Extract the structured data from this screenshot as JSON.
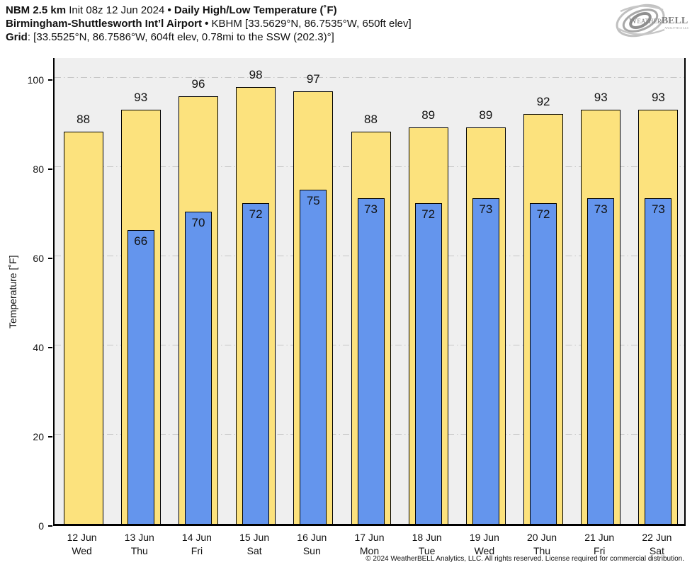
{
  "header": {
    "line1": {
      "model": "NBM 2.5 km",
      "init": " Init 08z 12 Jun 2024 ",
      "bullet": "• ",
      "product": "Daily High/Low Temperature (˚F)"
    },
    "line2": {
      "station": "Birmingham-Shuttlesworth Int’l Airport",
      "bullet": " • ",
      "details": "KBHM [33.5629°N, 86.7535°W, 650ft elev]"
    },
    "line3": {
      "label": "Grid",
      "details": ": [33.5525°N, 86.7586°W, 604ft elev, 0.78mi to the SSW (202.3)°]"
    }
  },
  "logo": {
    "word1": "Weather",
    "word2": "BELL",
    "subtitle": "Analytics LLC"
  },
  "footer": {
    "copyright": "© 2024 WeatherBELL Analytics, LLC. All rights reserved. License required for commercial distribution."
  },
  "chart_data": {
    "type": "bar",
    "title": "Daily High/Low Temperature (°F)",
    "ylabel": "Temperature [˚F]",
    "ylim": [
      0,
      105
    ],
    "yticks": [
      0,
      20,
      40,
      60,
      80,
      100
    ],
    "grid": "horizontal dash-dot",
    "legend_position": "none",
    "categories": [
      {
        "date": "12 Jun",
        "day": "Wed"
      },
      {
        "date": "13 Jun",
        "day": "Thu"
      },
      {
        "date": "14 Jun",
        "day": "Fri"
      },
      {
        "date": "15 Jun",
        "day": "Sat"
      },
      {
        "date": "16 Jun",
        "day": "Sun"
      },
      {
        "date": "17 Jun",
        "day": "Mon"
      },
      {
        "date": "18 Jun",
        "day": "Tue"
      },
      {
        "date": "19 Jun",
        "day": "Wed"
      },
      {
        "date": "20 Jun",
        "day": "Thu"
      },
      {
        "date": "21 Jun",
        "day": "Fri"
      },
      {
        "date": "22 Jun",
        "day": "Sat"
      }
    ],
    "series": [
      {
        "name": "High",
        "color": "#FCE27D",
        "values": [
          88,
          93,
          96,
          98,
          97,
          88,
          89,
          89,
          92,
          93,
          93
        ]
      },
      {
        "name": "Low",
        "color": "#6495ED",
        "values": [
          null,
          66,
          70,
          72,
          75,
          73,
          72,
          73,
          72,
          73,
          73
        ]
      }
    ]
  }
}
